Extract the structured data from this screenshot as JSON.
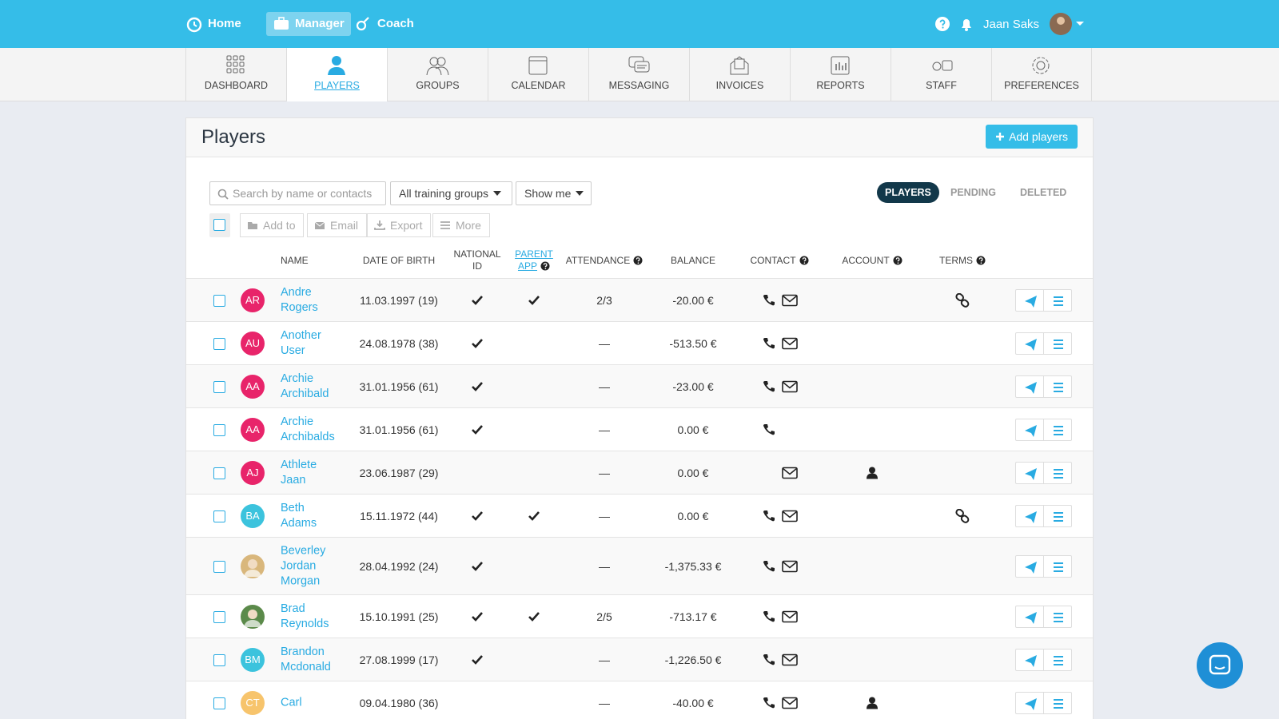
{
  "nav": {
    "items": [
      "Home",
      "Manager",
      "Coach"
    ],
    "active": 1,
    "user": "Jaan Saks"
  },
  "tabs": {
    "items": [
      "DASHBOARD",
      "PLAYERS",
      "GROUPS",
      "CALENDAR",
      "MESSAGING",
      "INVOICES",
      "REPORTS",
      "STAFF",
      "PREFERENCES"
    ],
    "active": 1
  },
  "header": {
    "title": "Players",
    "add_button": "Add players"
  },
  "toolbar": {
    "search_placeholder": "Search by name or contacts",
    "groups_dropdown": "All training groups",
    "show_dropdown": "Show me",
    "status_tabs": [
      "PLAYERS",
      "PENDING",
      "DELETED"
    ],
    "active_status": 0,
    "actions": [
      "Add to",
      "Email",
      "Export",
      "More"
    ]
  },
  "table": {
    "columns": [
      {
        "label": "NAME",
        "help": false
      },
      {
        "label": "DATE OF BIRTH",
        "help": false
      },
      {
        "label": "NATIONAL ID",
        "help": false
      },
      {
        "label": "PARENT APP",
        "help": true,
        "link": true
      },
      {
        "label": "ATTENDANCE",
        "help": true
      },
      {
        "label": "BALANCE",
        "help": false
      },
      {
        "label": "CONTACT",
        "help": true
      },
      {
        "label": "ACCOUNT",
        "help": true
      },
      {
        "label": "TERMS",
        "help": true
      }
    ],
    "rows": [
      {
        "initials": "AR",
        "avatar_color": "#e8246a",
        "name": "Andre Rogers",
        "dob": "11.03.1997 (19)",
        "national_id": true,
        "parent_app": true,
        "attendance": "2/3",
        "balance": "-20.00 €",
        "phone": true,
        "email": true,
        "account": false,
        "terms": true
      },
      {
        "initials": "AU",
        "avatar_color": "#e8246a",
        "name": "Another User",
        "dob": "24.08.1978 (38)",
        "national_id": true,
        "parent_app": false,
        "attendance": "—",
        "balance": "-513.50 €",
        "phone": true,
        "email": true,
        "account": false,
        "terms": false
      },
      {
        "initials": "AA",
        "avatar_color": "#e8246a",
        "name": "Archie Archibald",
        "dob": "31.01.1956 (61)",
        "national_id": true,
        "parent_app": false,
        "attendance": "—",
        "balance": "-23.00 €",
        "phone": true,
        "email": true,
        "account": false,
        "terms": false
      },
      {
        "initials": "AA",
        "avatar_color": "#e8246a",
        "name": "Archie Archibalds",
        "dob": "31.01.1956 (61)",
        "national_id": true,
        "parent_app": false,
        "attendance": "—",
        "balance": "0.00 €",
        "phone": true,
        "email": false,
        "account": false,
        "terms": false
      },
      {
        "initials": "AJ",
        "avatar_color": "#e8246a",
        "name": "Athlete Jaan",
        "dob": "23.06.1987 (29)",
        "national_id": false,
        "parent_app": false,
        "attendance": "—",
        "balance": "0.00 €",
        "phone": false,
        "email": true,
        "account": true,
        "terms": false
      },
      {
        "initials": "BA",
        "avatar_color": "#3cc3dd",
        "name": "Beth Adams",
        "dob": "15.11.1972 (44)",
        "national_id": true,
        "parent_app": true,
        "attendance": "—",
        "balance": "0.00 €",
        "phone": true,
        "email": true,
        "account": false,
        "terms": true
      },
      {
        "photo": true,
        "avatar_color": "#d9b77c",
        "name": "Beverley Jordan Morgan",
        "dob": "28.04.1992 (24)",
        "national_id": true,
        "parent_app": false,
        "attendance": "—",
        "balance": "-1,375.33 €",
        "phone": true,
        "email": true,
        "account": false,
        "terms": false
      },
      {
        "photo": true,
        "avatar_color": "#5b8a4a",
        "name": "Brad Reynolds",
        "dob": "15.10.1991 (25)",
        "national_id": true,
        "parent_app": true,
        "attendance": "2/5",
        "balance": "-713.17 €",
        "phone": true,
        "email": true,
        "account": false,
        "terms": false
      },
      {
        "initials": "BM",
        "avatar_color": "#3cc3dd",
        "name": "Brandon Mcdonald",
        "dob": "27.08.1999 (17)",
        "national_id": true,
        "parent_app": false,
        "attendance": "—",
        "balance": "-1,226.50 €",
        "phone": true,
        "email": true,
        "account": false,
        "terms": false
      },
      {
        "initials": "CT",
        "avatar_color": "#f7c46c",
        "name": "Carl",
        "dob": "09.04.1980 (36)",
        "national_id": false,
        "parent_app": false,
        "attendance": "—",
        "balance": "-40.00 €",
        "phone": true,
        "email": true,
        "account": true,
        "terms": false
      }
    ]
  }
}
